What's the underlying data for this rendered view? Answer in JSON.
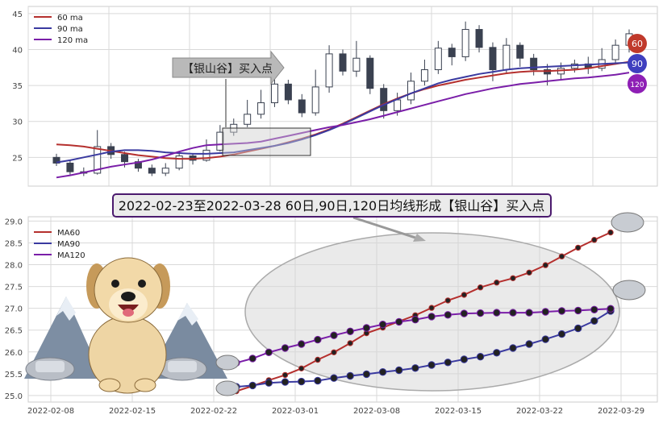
{
  "colors": {
    "ma60": "#b5302e",
    "ma90": "#3a3aa0",
    "ma120": "#7a1ea8",
    "candle": "#3a4150",
    "grid": "#d9d9d9",
    "frame": "#cccccc",
    "badge60": "#c0392b",
    "badge90": "#3f3fbf",
    "badge120": "#8e1fb5"
  },
  "annotation": {
    "arrow_label": "【银山谷】买入点",
    "title": "2022-02-23至2022-03-28 60日,90日,120日均线形成【银山谷】买入点"
  },
  "badges": [
    "60",
    "90",
    "120"
  ],
  "chart_data": [
    {
      "type": "candlestick",
      "ylim": [
        21,
        46
      ],
      "yticks": [
        25,
        30,
        35,
        40,
        45
      ],
      "grid": true,
      "legend_position": "top-left",
      "series": [
        {
          "name": "60 ma",
          "color_key": "ma60",
          "values": [
            26.8,
            26.7,
            26.5,
            26.2,
            25.9,
            25.6,
            25.3,
            25.1,
            24.9,
            24.8,
            24.8,
            24.9,
            25.1,
            25.4,
            25.8,
            26.2,
            26.6,
            27.1,
            27.6,
            28.2,
            28.9,
            29.7,
            30.6,
            31.5,
            32.4,
            33.2,
            33.9,
            34.5,
            35.0,
            35.4,
            35.8,
            36.1,
            36.4,
            36.7,
            36.9,
            37.0,
            37.0,
            37.1,
            37.2,
            37.4,
            37.7,
            38.0,
            38.3
          ]
        },
        {
          "name": "90 ma",
          "color_key": "ma90",
          "values": [
            24.3,
            24.6,
            25.0,
            25.4,
            25.8,
            26.0,
            26.0,
            25.9,
            25.7,
            25.6,
            25.5,
            25.5,
            25.6,
            25.7,
            26.0,
            26.3,
            26.6,
            27.0,
            27.5,
            28.1,
            28.8,
            29.6,
            30.5,
            31.4,
            32.3,
            33.1,
            33.9,
            34.6,
            35.3,
            35.8,
            36.2,
            36.6,
            36.9,
            37.2,
            37.4,
            37.5,
            37.6,
            37.7,
            37.8,
            37.9,
            38.0,
            38.1,
            38.2
          ]
        },
        {
          "name": "120 ma",
          "color_key": "ma120",
          "values": [
            22.2,
            22.5,
            22.9,
            23.3,
            23.7,
            24.0,
            24.3,
            24.7,
            25.2,
            25.8,
            26.3,
            26.7,
            26.8,
            26.9,
            27.0,
            27.2,
            27.6,
            28.0,
            28.4,
            28.8,
            29.2,
            29.5,
            29.9,
            30.3,
            30.8,
            31.3,
            31.8,
            32.3,
            32.8,
            33.3,
            33.8,
            34.2,
            34.6,
            34.9,
            35.2,
            35.4,
            35.6,
            35.8,
            36.0,
            36.1,
            36.3,
            36.5,
            36.8
          ]
        }
      ],
      "candles": [
        [
          25.0,
          24.2,
          25.5,
          23.8
        ],
        [
          24.2,
          23.0,
          24.6,
          22.6
        ],
        [
          23.0,
          22.8,
          23.6,
          22.4
        ],
        [
          22.8,
          26.5,
          28.8,
          22.6
        ],
        [
          26.5,
          25.4,
          27.0,
          24.8
        ],
        [
          25.4,
          24.4,
          25.8,
          23.6
        ],
        [
          24.4,
          23.5,
          24.8,
          23.0
        ],
        [
          23.5,
          22.8,
          24.0,
          22.4
        ],
        [
          22.8,
          23.5,
          24.2,
          22.4
        ],
        [
          23.5,
          25.2,
          25.8,
          23.2
        ],
        [
          25.2,
          24.6,
          25.6,
          24.0
        ],
        [
          24.6,
          26.0,
          27.5,
          24.4
        ],
        [
          26.0,
          28.5,
          29.5,
          25.8
        ],
        [
          28.5,
          29.6,
          30.4,
          28.0
        ],
        [
          29.6,
          31.0,
          33.0,
          29.2
        ],
        [
          31.0,
          32.6,
          34.4,
          30.4
        ],
        [
          32.6,
          35.2,
          36.6,
          32.0
        ],
        [
          35.2,
          33.0,
          35.8,
          32.4
        ],
        [
          33.0,
          31.2,
          33.8,
          30.6
        ],
        [
          31.2,
          34.8,
          37.2,
          30.8
        ],
        [
          34.8,
          39.4,
          40.6,
          34.0
        ],
        [
          39.4,
          37.0,
          40.0,
          36.4
        ],
        [
          37.0,
          38.8,
          41.2,
          36.2
        ],
        [
          38.8,
          34.6,
          39.2,
          33.8
        ],
        [
          34.6,
          31.5,
          35.2,
          30.4
        ],
        [
          31.5,
          33.0,
          34.0,
          30.8
        ],
        [
          33.0,
          35.6,
          36.8,
          32.4
        ],
        [
          35.6,
          37.2,
          38.6,
          35.0
        ],
        [
          37.2,
          40.2,
          41.2,
          36.6
        ],
        [
          40.2,
          39.0,
          40.8,
          37.8
        ],
        [
          39.0,
          42.8,
          43.9,
          38.4
        ],
        [
          42.8,
          40.3,
          43.4,
          39.6
        ],
        [
          40.3,
          37.2,
          41.0,
          35.6
        ],
        [
          37.2,
          40.6,
          41.6,
          36.8
        ],
        [
          40.6,
          38.8,
          41.0,
          37.6
        ],
        [
          38.8,
          37.2,
          39.4,
          36.4
        ],
        [
          37.2,
          36.6,
          38.0,
          35.0
        ],
        [
          36.6,
          37.4,
          38.2,
          35.8
        ],
        [
          37.4,
          38.0,
          38.6,
          36.8
        ],
        [
          38.0,
          37.4,
          39.0,
          36.6
        ],
        [
          37.4,
          38.6,
          40.2,
          37.0
        ],
        [
          38.6,
          40.6,
          41.4,
          38.2
        ],
        [
          40.6,
          42.2,
          42.8,
          39.6
        ]
      ]
    },
    {
      "type": "line",
      "x": [
        "2022-02-23",
        "2022-02-24",
        "2022-02-25",
        "2022-02-28",
        "2022-03-01",
        "2022-03-02",
        "2022-03-03",
        "2022-03-04",
        "2022-03-07",
        "2022-03-08",
        "2022-03-09",
        "2022-03-10",
        "2022-03-11",
        "2022-03-14",
        "2022-03-15",
        "2022-03-16",
        "2022-03-17",
        "2022-03-18",
        "2022-03-21",
        "2022-03-22",
        "2022-03-23",
        "2022-03-24",
        "2022-03-25",
        "2022-03-28"
      ],
      "xticks": [
        "2022-02-08",
        "2022-02-15",
        "2022-02-22",
        "2022-03-01",
        "2022-03-08",
        "2022-03-15",
        "2022-03-22",
        "2022-03-29"
      ],
      "ylim": [
        24.85,
        29.1
      ],
      "yticks": [
        "25.0",
        "25.5",
        "26.0",
        "26.5",
        "27.0",
        "27.5",
        "28.0",
        "28.5",
        "29.0"
      ],
      "grid": true,
      "legend_position": "top-left",
      "series": [
        {
          "name": "MA60",
          "color_key": "ma60",
          "values": [
            25.1,
            25.22,
            25.35,
            25.47,
            25.62,
            25.82,
            25.99,
            26.2,
            26.43,
            26.56,
            26.7,
            26.84,
            27.01,
            27.18,
            27.31,
            27.48,
            27.59,
            27.69,
            27.82,
            27.99,
            28.19,
            28.39,
            28.57,
            28.74
          ]
        },
        {
          "name": "MA90",
          "color_key": "ma90",
          "values": [
            25.2,
            25.23,
            25.29,
            25.31,
            25.32,
            25.34,
            25.4,
            25.45,
            25.49,
            25.54,
            25.58,
            25.63,
            25.7,
            25.76,
            25.83,
            25.89,
            25.98,
            26.09,
            26.18,
            26.29,
            26.41,
            26.54,
            26.71,
            26.94
          ]
        },
        {
          "name": "MA120",
          "color_key": "ma120",
          "values": [
            25.75,
            25.85,
            25.99,
            26.09,
            26.18,
            26.28,
            26.38,
            26.47,
            26.55,
            26.63,
            26.69,
            26.74,
            26.81,
            26.85,
            26.88,
            26.89,
            26.9,
            26.9,
            26.9,
            26.92,
            26.94,
            26.95,
            26.97,
            26.99
          ]
        }
      ]
    }
  ]
}
